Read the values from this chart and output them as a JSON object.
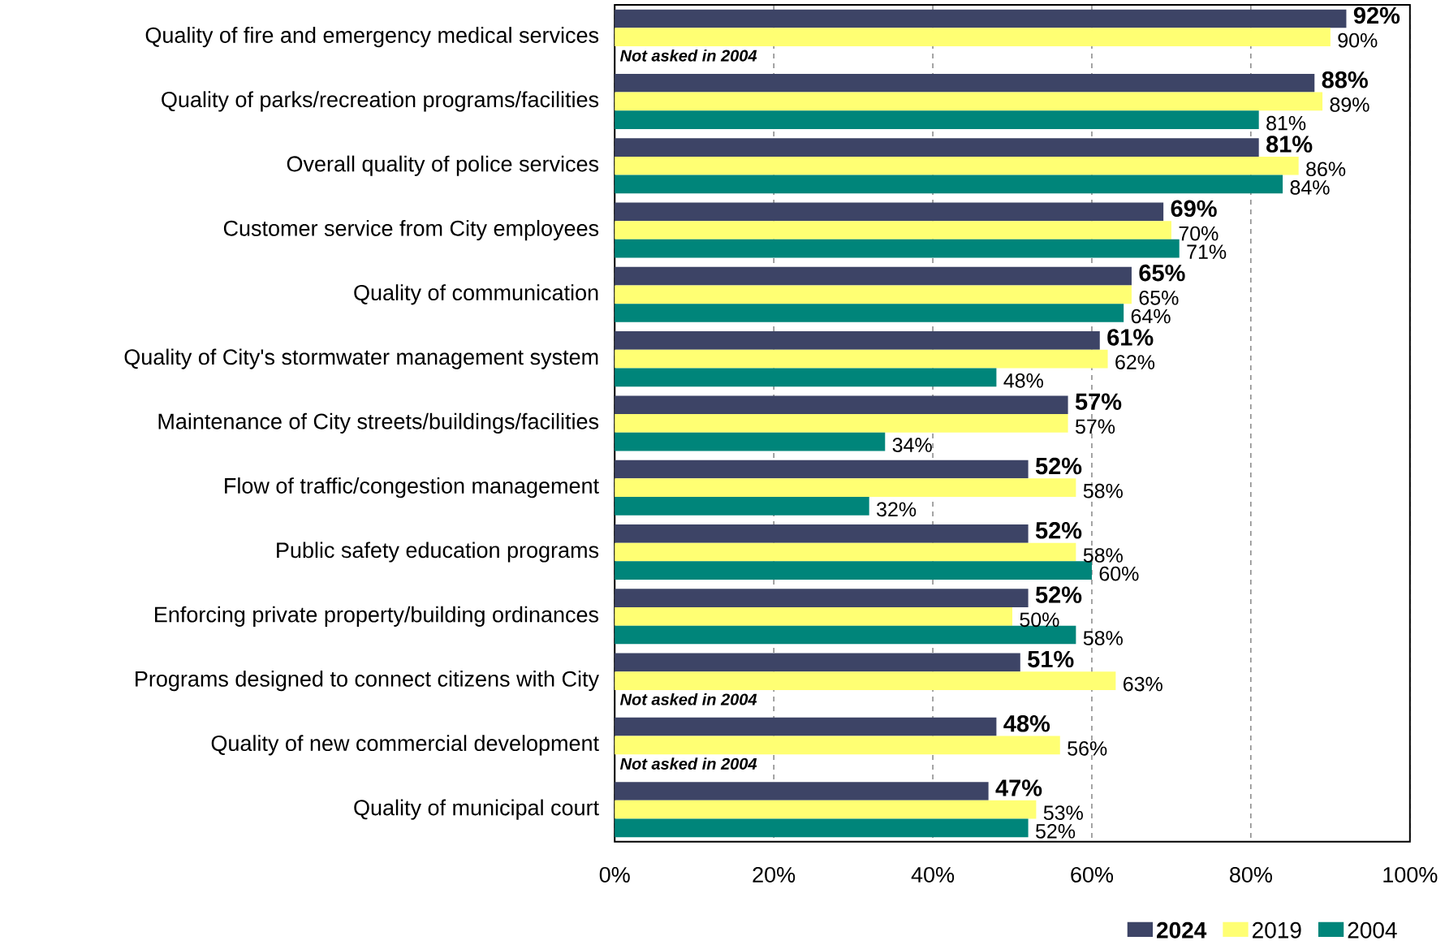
{
  "chart_data": {
    "type": "bar",
    "orientation": "horizontal",
    "categories": [
      "Quality of fire and emergency medical services",
      "Quality of parks/recreation programs/facilities",
      "Overall quality of police services",
      "Customer service from City employees",
      "Quality of communication",
      "Quality of City's stormwater management system",
      "Maintenance of City streets/buildings/facilities",
      "Flow of traffic/congestion management",
      "Public safety education programs",
      "Enforcing private property/building ordinances",
      "Programs designed to connect citizens with City",
      "Quality of new commercial development",
      "Quality of municipal court"
    ],
    "series": [
      {
        "name": "2024",
        "color": "#3d4466",
        "values": [
          92,
          88,
          81,
          69,
          65,
          61,
          57,
          52,
          52,
          52,
          51,
          48,
          47
        ],
        "value_labels": [
          "92%",
          "88%",
          "81%",
          "69%",
          "65%",
          "61%",
          "57%",
          "52%",
          "52%",
          "52%",
          "51%",
          "48%",
          "47%"
        ]
      },
      {
        "name": "2019",
        "color": "#ffff73",
        "values": [
          90,
          89,
          86,
          70,
          65,
          62,
          57,
          58,
          58,
          50,
          63,
          56,
          53
        ],
        "value_labels": [
          "90%",
          "89%",
          "86%",
          "70%",
          "65%",
          "62%",
          "57%",
          "58%",
          "58%",
          "50%",
          "63%",
          "56%",
          "53%"
        ]
      },
      {
        "name": "2004",
        "color": "#00857a",
        "values": [
          null,
          81,
          84,
          71,
          64,
          48,
          34,
          32,
          60,
          58,
          null,
          null,
          52
        ],
        "value_labels": [
          null,
          "81%",
          "84%",
          "71%",
          "64%",
          "48%",
          "34%",
          "32%",
          "60%",
          "58%",
          null,
          null,
          "52%"
        ]
      }
    ],
    "xlim": [
      0,
      100
    ],
    "xticks": [
      {
        "value": 0,
        "label": "0%"
      },
      {
        "value": 20,
        "label": "20%"
      },
      {
        "value": 40,
        "label": "40%"
      },
      {
        "value": 60,
        "label": "60%"
      },
      {
        "value": 80,
        "label": "80%"
      },
      {
        "value": 100,
        "label": "100%"
      }
    ],
    "grid": "x",
    "legend": "bottom right",
    "annotations": [
      "Not asked in 2004",
      "Not asked in 2004",
      "Not asked in 2004"
    ]
  }
}
